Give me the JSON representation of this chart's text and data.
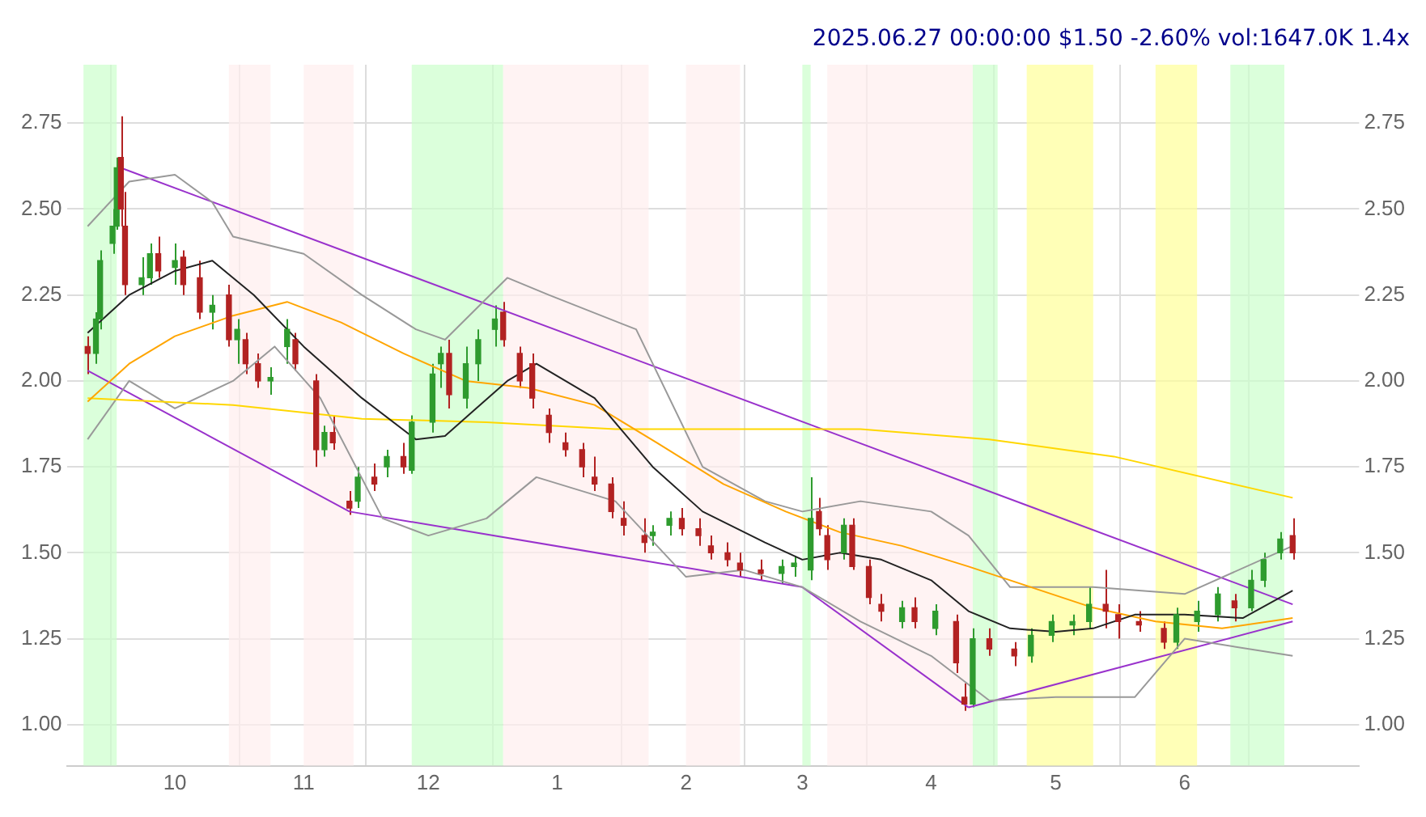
{
  "chart_data": {
    "type": "candlestick",
    "title": "2025.06.27 00:00:00 $1.50 -2.60% vol:1647.0K 1.4x",
    "x": [
      "2024-09-10",
      "2024-09-12",
      "2024-09-13",
      "2024-09-16",
      "2024-09-17",
      "2024-09-18",
      "2024-09-19",
      "2024-09-23",
      "2024-09-25",
      "2024-09-27",
      "2024-10-01",
      "2024-10-03",
      "2024-10-07",
      "2024-10-10",
      "2024-10-14",
      "2024-10-16",
      "2024-10-18",
      "2024-10-21",
      "2024-10-24",
      "2024-10-28",
      "2024-10-30",
      "2024-11-04",
      "2024-11-06",
      "2024-11-08",
      "2024-11-12",
      "2024-11-14",
      "2024-11-18",
      "2024-11-21",
      "2024-11-25",
      "2024-11-27",
      "2024-12-02",
      "2024-12-04",
      "2024-12-06",
      "2024-12-10",
      "2024-12-13",
      "2024-12-17",
      "2024-12-19",
      "2024-12-23",
      "2024-12-26",
      "2024-12-30",
      "2025-01-03",
      "2025-01-07",
      "2025-01-10",
      "2025-01-14",
      "2025-01-17",
      "2025-01-22",
      "2025-01-24",
      "2025-01-28",
      "2025-01-31",
      "2025-02-04",
      "2025-02-07",
      "2025-02-11",
      "2025-02-14",
      "2025-02-19",
      "2025-02-24",
      "2025-02-27",
      "2025-03-03",
      "2025-03-05",
      "2025-03-07",
      "2025-03-11",
      "2025-03-13",
      "2025-03-17",
      "2025-03-20",
      "2025-03-25",
      "2025-03-28",
      "2025-04-02",
      "2025-04-07",
      "2025-04-09",
      "2025-04-11",
      "2025-04-15",
      "2025-04-21",
      "2025-04-25",
      "2025-04-30",
      "2025-05-05",
      "2025-05-09",
      "2025-05-13",
      "2025-05-16",
      "2025-05-21",
      "2025-05-27",
      "2025-05-30",
      "2025-06-04",
      "2025-06-09",
      "2025-06-13",
      "2025-06-17",
      "2025-06-20",
      "2025-06-24",
      "2025-06-27"
    ],
    "ohlc": [
      [
        2.1,
        2.13,
        2.02,
        2.08
      ],
      [
        2.08,
        2.2,
        2.05,
        2.18
      ],
      [
        2.18,
        2.38,
        2.15,
        2.35
      ],
      [
        2.4,
        2.5,
        2.37,
        2.45
      ],
      [
        2.45,
        2.65,
        2.44,
        2.62
      ],
      [
        2.65,
        2.77,
        2.45,
        2.5
      ],
      [
        2.45,
        2.55,
        2.25,
        2.28
      ],
      [
        2.28,
        2.36,
        2.25,
        2.3
      ],
      [
        2.3,
        2.4,
        2.28,
        2.37
      ],
      [
        2.37,
        2.42,
        2.3,
        2.32
      ],
      [
        2.33,
        2.4,
        2.28,
        2.35
      ],
      [
        2.36,
        2.38,
        2.25,
        2.28
      ],
      [
        2.3,
        2.35,
        2.18,
        2.2
      ],
      [
        2.2,
        2.25,
        2.15,
        2.22
      ],
      [
        2.25,
        2.28,
        2.1,
        2.12
      ],
      [
        2.12,
        2.18,
        2.05,
        2.15
      ],
      [
        2.12,
        2.14,
        2.02,
        2.05
      ],
      [
        2.05,
        2.08,
        1.98,
        2.0
      ],
      [
        2.0,
        2.04,
        1.96,
        2.01
      ],
      [
        2.1,
        2.18,
        2.05,
        2.15
      ],
      [
        2.12,
        2.14,
        2.03,
        2.05
      ],
      [
        2.0,
        2.02,
        1.75,
        1.8
      ],
      [
        1.8,
        1.87,
        1.78,
        1.85
      ],
      [
        1.85,
        1.9,
        1.8,
        1.82
      ],
      [
        1.65,
        1.68,
        1.61,
        1.63
      ],
      [
        1.65,
        1.75,
        1.63,
        1.72
      ],
      [
        1.72,
        1.76,
        1.68,
        1.7
      ],
      [
        1.75,
        1.8,
        1.72,
        1.78
      ],
      [
        1.78,
        1.82,
        1.73,
        1.75
      ],
      [
        1.74,
        1.9,
        1.73,
        1.88
      ],
      [
        1.88,
        2.05,
        1.85,
        2.02
      ],
      [
        2.05,
        2.1,
        1.98,
        2.08
      ],
      [
        2.08,
        2.12,
        1.92,
        1.96
      ],
      [
        1.95,
        2.1,
        1.92,
        2.05
      ],
      [
        2.05,
        2.15,
        2.0,
        2.12
      ],
      [
        2.15,
        2.22,
        2.1,
        2.18
      ],
      [
        2.2,
        2.23,
        2.1,
        2.12
      ],
      [
        2.08,
        2.1,
        1.98,
        2.0
      ],
      [
        2.05,
        2.08,
        1.92,
        1.95
      ],
      [
        1.9,
        1.92,
        1.82,
        1.85
      ],
      [
        1.82,
        1.85,
        1.78,
        1.8
      ],
      [
        1.8,
        1.82,
        1.72,
        1.75
      ],
      [
        1.72,
        1.78,
        1.68,
        1.7
      ],
      [
        1.7,
        1.72,
        1.6,
        1.62
      ],
      [
        1.6,
        1.65,
        1.55,
        1.58
      ],
      [
        1.55,
        1.6,
        1.5,
        1.53
      ],
      [
        1.55,
        1.58,
        1.52,
        1.56
      ],
      [
        1.58,
        1.62,
        1.55,
        1.6
      ],
      [
        1.6,
        1.63,
        1.55,
        1.57
      ],
      [
        1.57,
        1.6,
        1.52,
        1.55
      ],
      [
        1.52,
        1.55,
        1.48,
        1.5
      ],
      [
        1.5,
        1.53,
        1.46,
        1.48
      ],
      [
        1.47,
        1.5,
        1.43,
        1.45
      ],
      [
        1.45,
        1.48,
        1.42,
        1.44
      ],
      [
        1.44,
        1.48,
        1.41,
        1.46
      ],
      [
        1.46,
        1.49,
        1.43,
        1.47
      ],
      [
        1.45,
        1.72,
        1.42,
        1.6
      ],
      [
        1.62,
        1.66,
        1.55,
        1.57
      ],
      [
        1.55,
        1.58,
        1.45,
        1.48
      ],
      [
        1.5,
        1.6,
        1.48,
        1.58
      ],
      [
        1.58,
        1.6,
        1.45,
        1.46
      ],
      [
        1.46,
        1.48,
        1.35,
        1.37
      ],
      [
        1.35,
        1.38,
        1.3,
        1.33
      ],
      [
        1.3,
        1.36,
        1.28,
        1.34
      ],
      [
        1.34,
        1.37,
        1.28,
        1.3
      ],
      [
        1.28,
        1.35,
        1.26,
        1.33
      ],
      [
        1.3,
        1.32,
        1.15,
        1.18
      ],
      [
        1.08,
        1.12,
        1.04,
        1.06
      ],
      [
        1.06,
        1.28,
        1.05,
        1.25
      ],
      [
        1.25,
        1.28,
        1.2,
        1.22
      ],
      [
        1.22,
        1.24,
        1.17,
        1.2
      ],
      [
        1.2,
        1.28,
        1.18,
        1.26
      ],
      [
        1.26,
        1.32,
        1.24,
        1.3
      ],
      [
        1.29,
        1.32,
        1.26,
        1.3
      ],
      [
        1.3,
        1.4,
        1.28,
        1.35
      ],
      [
        1.35,
        1.45,
        1.28,
        1.33
      ],
      [
        1.32,
        1.35,
        1.25,
        1.3
      ],
      [
        1.3,
        1.33,
        1.27,
        1.29
      ],
      [
        1.28,
        1.3,
        1.22,
        1.24
      ],
      [
        1.24,
        1.34,
        1.22,
        1.32
      ],
      [
        1.3,
        1.36,
        1.27,
        1.33
      ],
      [
        1.32,
        1.4,
        1.3,
        1.38
      ],
      [
        1.36,
        1.38,
        1.3,
        1.34
      ],
      [
        1.34,
        1.45,
        1.33,
        1.42
      ],
      [
        1.42,
        1.5,
        1.4,
        1.48
      ],
      [
        1.5,
        1.56,
        1.48,
        1.54
      ],
      [
        1.55,
        1.6,
        1.48,
        1.5
      ]
    ],
    "series": [
      {
        "type": "line",
        "color": "#222222",
        "x": [
          "2024-09-10",
          "2024-09-20",
          "2024-10-01",
          "2024-10-10",
          "2024-10-20",
          "2024-11-01",
          "2024-11-15",
          "2024-11-28",
          "2024-12-05",
          "2024-12-20",
          "2024-12-27",
          "2025-01-10",
          "2025-01-24",
          "2025-02-05",
          "2025-02-20",
          "2025-03-01",
          "2025-03-10",
          "2025-03-20",
          "2025-04-01",
          "2025-04-10",
          "2025-04-20",
          "2025-05-01",
          "2025-05-10",
          "2025-05-20",
          "2025-06-01",
          "2025-06-15",
          "2025-06-27"
        ],
        "values": [
          2.14,
          2.25,
          2.32,
          2.35,
          2.25,
          2.1,
          1.95,
          1.83,
          1.84,
          2.0,
          2.05,
          1.95,
          1.75,
          1.62,
          1.53,
          1.48,
          1.5,
          1.48,
          1.42,
          1.33,
          1.28,
          1.27,
          1.28,
          1.32,
          1.32,
          1.31,
          1.39
        ]
      },
      {
        "type": "line",
        "color": "#ffa500",
        "x": [
          "2024-09-10",
          "2024-09-20",
          "2024-10-01",
          "2024-10-15",
          "2024-10-28",
          "2024-11-10",
          "2024-11-25",
          "2024-12-10",
          "2024-12-25",
          "2025-01-10",
          "2025-01-25",
          "2025-02-10",
          "2025-02-25",
          "2025-03-10",
          "2025-03-25",
          "2025-04-10",
          "2025-04-25",
          "2025-05-10",
          "2025-05-25",
          "2025-06-10",
          "2025-06-27"
        ],
        "values": [
          1.94,
          2.05,
          2.13,
          2.19,
          2.23,
          2.17,
          2.08,
          2.0,
          1.98,
          1.93,
          1.82,
          1.7,
          1.62,
          1.56,
          1.52,
          1.46,
          1.4,
          1.34,
          1.3,
          1.28,
          1.31
        ]
      },
      {
        "type": "line",
        "color": "#ffd700",
        "x": [
          "2024-09-10",
          "2024-10-15",
          "2024-11-15",
          "2024-12-15",
          "2025-01-15",
          "2025-02-15",
          "2025-03-15",
          "2025-04-15",
          "2025-05-15",
          "2025-06-27"
        ],
        "values": [
          1.95,
          1.93,
          1.89,
          1.88,
          1.86,
          1.86,
          1.86,
          1.83,
          1.78,
          1.66
        ]
      },
      {
        "type": "line",
        "color": "#999999",
        "x": [
          "2024-09-10",
          "2024-09-20",
          "2024-10-01",
          "2024-10-10",
          "2024-10-15",
          "2024-11-01",
          "2024-11-15",
          "2024-11-28",
          "2024-12-05",
          "2024-12-20",
          "2024-12-30",
          "2025-01-20",
          "2025-02-05",
          "2025-02-20",
          "2025-03-01",
          "2025-03-15",
          "2025-04-01",
          "2025-04-10",
          "2025-04-20",
          "2025-05-10",
          "2025-06-01",
          "2025-06-27"
        ],
        "values": [
          2.45,
          2.58,
          2.6,
          2.52,
          2.42,
          2.37,
          2.25,
          2.15,
          2.12,
          2.3,
          2.25,
          2.15,
          1.75,
          1.65,
          1.62,
          1.65,
          1.62,
          1.55,
          1.4,
          1.4,
          1.38,
          1.52
        ]
      },
      {
        "type": "line",
        "color": "#999999",
        "x": [
          "2024-09-10",
          "2024-09-20",
          "2024-10-01",
          "2024-10-15",
          "2024-10-25",
          "2024-11-05",
          "2024-11-20",
          "2024-12-01",
          "2024-12-15",
          "2024-12-27",
          "2025-01-15",
          "2025-02-01",
          "2025-02-15",
          "2025-03-01",
          "2025-03-15",
          "2025-04-01",
          "2025-04-15",
          "2025-05-01",
          "2025-05-20",
          "2025-06-01",
          "2025-06-27"
        ],
        "values": [
          1.83,
          2.0,
          1.92,
          2.0,
          2.1,
          1.95,
          1.6,
          1.55,
          1.6,
          1.72,
          1.65,
          1.43,
          1.45,
          1.4,
          1.3,
          1.2,
          1.07,
          1.08,
          1.08,
          1.25,
          1.2
        ]
      },
      {
        "type": "line",
        "color": "#9932cc",
        "x": [
          "2024-09-18",
          "2025-06-27"
        ],
        "values": [
          2.62,
          1.35
        ]
      },
      {
        "type": "line",
        "color": "#9932cc",
        "x": [
          "2024-09-10",
          "2024-11-12",
          "2025-03-01",
          "2025-04-10"
        ],
        "values": [
          2.03,
          1.62,
          1.4,
          1.05
        ]
      },
      {
        "type": "line",
        "color": "#9932cc",
        "x": [
          "2025-04-10",
          "2025-06-27"
        ],
        "values": [
          1.05,
          1.3
        ]
      }
    ],
    "bands": [
      {
        "axis": "x",
        "from": "2024-09-09",
        "to": "2024-09-17",
        "color": "#ccffcc"
      },
      {
        "axis": "x",
        "from": "2024-10-14",
        "to": "2024-10-24",
        "color": "#ffeeee"
      },
      {
        "axis": "x",
        "from": "2024-11-01",
        "to": "2024-11-13",
        "color": "#ffeeee"
      },
      {
        "axis": "x",
        "from": "2024-11-27",
        "to": "2024-12-19",
        "color": "#ccffcc"
      },
      {
        "axis": "x",
        "from": "2024-12-19",
        "to": "2025-01-23",
        "color": "#ffeeee"
      },
      {
        "axis": "x",
        "from": "2025-02-01",
        "to": "2025-02-14",
        "color": "#ffeeee"
      },
      {
        "axis": "x",
        "from": "2025-03-01",
        "to": "2025-03-03",
        "color": "#ccffcc"
      },
      {
        "axis": "x",
        "from": "2025-03-07",
        "to": "2025-04-11",
        "color": "#ffeeee"
      },
      {
        "axis": "x",
        "from": "2025-04-11",
        "to": "2025-04-17",
        "color": "#ccffcc"
      },
      {
        "axis": "x",
        "from": "2025-04-24",
        "to": "2025-05-10",
        "color": "#ffff99"
      },
      {
        "axis": "x",
        "from": "2025-05-25",
        "to": "2025-06-04",
        "color": "#ffff99"
      },
      {
        "axis": "x",
        "from": "2025-06-12",
        "to": "2025-06-25",
        "color": "#ccffcc"
      }
    ],
    "xlim": [
      "2024-09-05",
      "2025-07-13"
    ],
    "xticks": [
      {
        "value": "2024-10-01",
        "label": "10"
      },
      {
        "value": "2024-11-01",
        "label": "11"
      },
      {
        "value": "2024-12-01",
        "label": "12"
      },
      {
        "value": "2025-01-01",
        "label": "1"
      },
      {
        "value": "2025-02-01",
        "label": "2"
      },
      {
        "value": "2025-03-01",
        "label": "3"
      },
      {
        "value": "2025-04-01",
        "label": "4"
      },
      {
        "value": "2025-05-01",
        "label": "5"
      },
      {
        "value": "2025-06-01",
        "label": "6"
      }
    ],
    "ylim": [
      0.88,
      2.92
    ],
    "yticks": [
      {
        "value": 1,
        "label": "1.00"
      },
      {
        "value": 1.25,
        "label": "1.25"
      },
      {
        "value": 1.5,
        "label": "1.50"
      },
      {
        "value": 1.75,
        "label": "1.75"
      },
      {
        "value": 2,
        "label": "2.00"
      },
      {
        "value": 2.25,
        "label": "2.25"
      },
      {
        "value": 2.5,
        "label": "2.50"
      },
      {
        "value": 2.75,
        "label": "2.75"
      }
    ],
    "y2lim": [
      0.88,
      2.92
    ],
    "y2ticks": [
      {
        "value": 1,
        "label": "1.00"
      },
      {
        "value": 1.25,
        "label": "1.25"
      },
      {
        "value": 1.5,
        "label": "1.50"
      },
      {
        "value": 1.75,
        "label": "1.75"
      },
      {
        "value": 2,
        "label": "2.00"
      },
      {
        "value": 2.25,
        "label": "2.25"
      },
      {
        "value": 2.5,
        "label": "2.50"
      },
      {
        "value": 2.75,
        "label": "2.75"
      }
    ],
    "grid": true
  }
}
